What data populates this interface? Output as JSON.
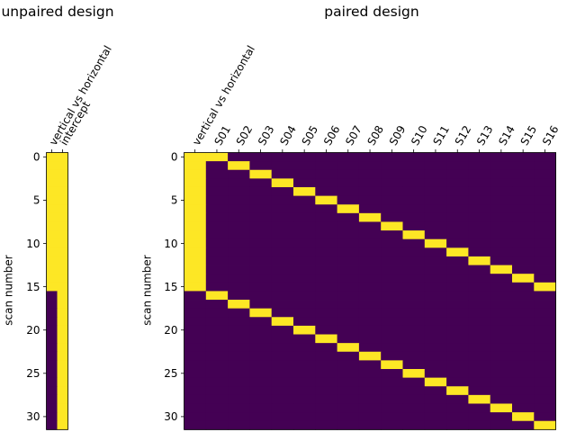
{
  "chart_data": [
    {
      "type": "heatmap",
      "title": "unpaired design",
      "xlabel": "",
      "ylabel": "scan number",
      "columns": [
        "vertical vs horizontal",
        "intercept"
      ],
      "rows": 32,
      "yticks": [
        0,
        5,
        10,
        15,
        20,
        25,
        30
      ],
      "colormap": "viridis",
      "vmin": -1,
      "vmax": 1,
      "matrix": [
        [
          1,
          1
        ],
        [
          1,
          1
        ],
        [
          1,
          1
        ],
        [
          1,
          1
        ],
        [
          1,
          1
        ],
        [
          1,
          1
        ],
        [
          1,
          1
        ],
        [
          1,
          1
        ],
        [
          1,
          1
        ],
        [
          1,
          1
        ],
        [
          1,
          1
        ],
        [
          1,
          1
        ],
        [
          1,
          1
        ],
        [
          1,
          1
        ],
        [
          1,
          1
        ],
        [
          1,
          1
        ],
        [
          -1,
          1
        ],
        [
          -1,
          1
        ],
        [
          -1,
          1
        ],
        [
          -1,
          1
        ],
        [
          -1,
          1
        ],
        [
          -1,
          1
        ],
        [
          -1,
          1
        ],
        [
          -1,
          1
        ],
        [
          -1,
          1
        ],
        [
          -1,
          1
        ],
        [
          -1,
          1
        ],
        [
          -1,
          1
        ],
        [
          -1,
          1
        ],
        [
          -1,
          1
        ],
        [
          -1,
          1
        ],
        [
          -1,
          1
        ]
      ]
    },
    {
      "type": "heatmap",
      "title": "paired design",
      "xlabel": "",
      "ylabel": "scan number",
      "columns": [
        "vertical vs horizontal",
        "S01",
        "S02",
        "S03",
        "S04",
        "S05",
        "S06",
        "S07",
        "S08",
        "S09",
        "S10",
        "S11",
        "S12",
        "S13",
        "S14",
        "S15",
        "S16"
      ],
      "rows": 32,
      "yticks": [
        0,
        5,
        10,
        15,
        20,
        25,
        30
      ],
      "colormap": "viridis",
      "vmin": 0,
      "vmax": 1,
      "structure": "first column is 1 for scans 0-15 and 0 for scans 16-31; subject column k (S01..S16) is 1 at scans k-1 and k+15",
      "matrix": [
        [
          1,
          1,
          0,
          0,
          0,
          0,
          0,
          0,
          0,
          0,
          0,
          0,
          0,
          0,
          0,
          0,
          0
        ],
        [
          1,
          0,
          1,
          0,
          0,
          0,
          0,
          0,
          0,
          0,
          0,
          0,
          0,
          0,
          0,
          0,
          0
        ],
        [
          1,
          0,
          0,
          1,
          0,
          0,
          0,
          0,
          0,
          0,
          0,
          0,
          0,
          0,
          0,
          0,
          0
        ],
        [
          1,
          0,
          0,
          0,
          1,
          0,
          0,
          0,
          0,
          0,
          0,
          0,
          0,
          0,
          0,
          0,
          0
        ],
        [
          1,
          0,
          0,
          0,
          0,
          1,
          0,
          0,
          0,
          0,
          0,
          0,
          0,
          0,
          0,
          0,
          0
        ],
        [
          1,
          0,
          0,
          0,
          0,
          0,
          1,
          0,
          0,
          0,
          0,
          0,
          0,
          0,
          0,
          0,
          0
        ],
        [
          1,
          0,
          0,
          0,
          0,
          0,
          0,
          1,
          0,
          0,
          0,
          0,
          0,
          0,
          0,
          0,
          0
        ],
        [
          1,
          0,
          0,
          0,
          0,
          0,
          0,
          0,
          1,
          0,
          0,
          0,
          0,
          0,
          0,
          0,
          0
        ],
        [
          1,
          0,
          0,
          0,
          0,
          0,
          0,
          0,
          0,
          1,
          0,
          0,
          0,
          0,
          0,
          0,
          0
        ],
        [
          1,
          0,
          0,
          0,
          0,
          0,
          0,
          0,
          0,
          0,
          1,
          0,
          0,
          0,
          0,
          0,
          0
        ],
        [
          1,
          0,
          0,
          0,
          0,
          0,
          0,
          0,
          0,
          0,
          0,
          1,
          0,
          0,
          0,
          0,
          0
        ],
        [
          1,
          0,
          0,
          0,
          0,
          0,
          0,
          0,
          0,
          0,
          0,
          0,
          1,
          0,
          0,
          0,
          0
        ],
        [
          1,
          0,
          0,
          0,
          0,
          0,
          0,
          0,
          0,
          0,
          0,
          0,
          0,
          1,
          0,
          0,
          0
        ],
        [
          1,
          0,
          0,
          0,
          0,
          0,
          0,
          0,
          0,
          0,
          0,
          0,
          0,
          0,
          1,
          0,
          0
        ],
        [
          1,
          0,
          0,
          0,
          0,
          0,
          0,
          0,
          0,
          0,
          0,
          0,
          0,
          0,
          0,
          1,
          0
        ],
        [
          1,
          0,
          0,
          0,
          0,
          0,
          0,
          0,
          0,
          0,
          0,
          0,
          0,
          0,
          0,
          0,
          1
        ],
        [
          0,
          1,
          0,
          0,
          0,
          0,
          0,
          0,
          0,
          0,
          0,
          0,
          0,
          0,
          0,
          0,
          0
        ],
        [
          0,
          0,
          1,
          0,
          0,
          0,
          0,
          0,
          0,
          0,
          0,
          0,
          0,
          0,
          0,
          0,
          0
        ],
        [
          0,
          0,
          0,
          1,
          0,
          0,
          0,
          0,
          0,
          0,
          0,
          0,
          0,
          0,
          0,
          0,
          0
        ],
        [
          0,
          0,
          0,
          0,
          1,
          0,
          0,
          0,
          0,
          0,
          0,
          0,
          0,
          0,
          0,
          0,
          0
        ],
        [
          0,
          0,
          0,
          0,
          0,
          1,
          0,
          0,
          0,
          0,
          0,
          0,
          0,
          0,
          0,
          0,
          0
        ],
        [
          0,
          0,
          0,
          0,
          0,
          0,
          1,
          0,
          0,
          0,
          0,
          0,
          0,
          0,
          0,
          0,
          0
        ],
        [
          0,
          0,
          0,
          0,
          0,
          0,
          0,
          1,
          0,
          0,
          0,
          0,
          0,
          0,
          0,
          0,
          0
        ],
        [
          0,
          0,
          0,
          0,
          0,
          0,
          0,
          0,
          1,
          0,
          0,
          0,
          0,
          0,
          0,
          0,
          0
        ],
        [
          0,
          0,
          0,
          0,
          0,
          0,
          0,
          0,
          0,
          1,
          0,
          0,
          0,
          0,
          0,
          0,
          0
        ],
        [
          0,
          0,
          0,
          0,
          0,
          0,
          0,
          0,
          0,
          0,
          1,
          0,
          0,
          0,
          0,
          0,
          0
        ],
        [
          0,
          0,
          0,
          0,
          0,
          0,
          0,
          0,
          0,
          0,
          0,
          1,
          0,
          0,
          0,
          0,
          0
        ],
        [
          0,
          0,
          0,
          0,
          0,
          0,
          0,
          0,
          0,
          0,
          0,
          0,
          1,
          0,
          0,
          0,
          0
        ],
        [
          0,
          0,
          0,
          0,
          0,
          0,
          0,
          0,
          0,
          0,
          0,
          0,
          0,
          1,
          0,
          0,
          0
        ],
        [
          0,
          0,
          0,
          0,
          0,
          0,
          0,
          0,
          0,
          0,
          0,
          0,
          0,
          0,
          1,
          0,
          0
        ],
        [
          0,
          0,
          0,
          0,
          0,
          0,
          0,
          0,
          0,
          0,
          0,
          0,
          0,
          0,
          0,
          1,
          0
        ],
        [
          0,
          0,
          0,
          0,
          0,
          0,
          0,
          0,
          0,
          0,
          0,
          0,
          0,
          0,
          0,
          0,
          1
        ]
      ]
    }
  ],
  "colors": {
    "low": "#440154",
    "high": "#fde725"
  }
}
